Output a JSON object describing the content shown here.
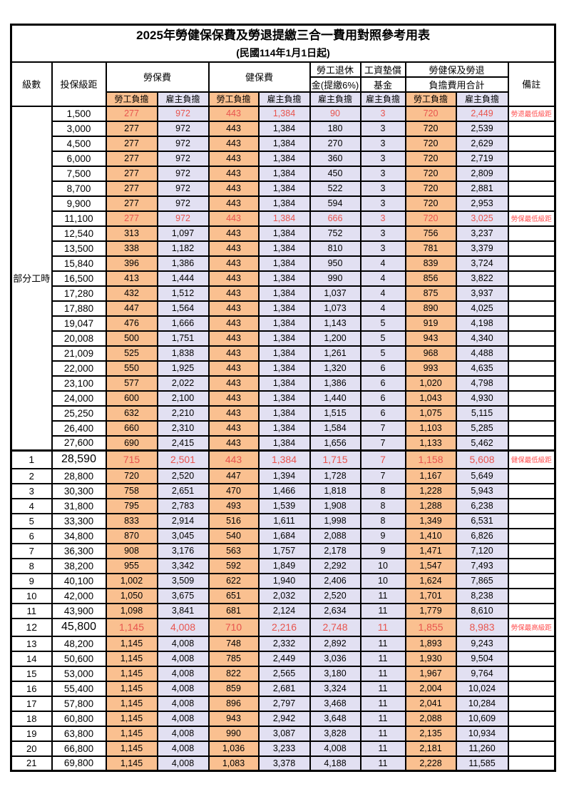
{
  "title": "2025年勞健保保費及勞退提繳三合一費用對照參考用表",
  "subtitle": "(民國114年1月1日起)",
  "colors": {
    "employee_bg": "#FAC090",
    "employer_bg": "#E2E0F2",
    "value_red": "#E8544E",
    "remark_red": "#FF4D4D",
    "border": "#000000"
  },
  "header": {
    "level": "級數",
    "bracket": "投保級距",
    "labor_insurance": "勞保費",
    "health_insurance": "健保費",
    "pension_line1": "勞工退休",
    "pension_line2": "金(提繳6%)",
    "wage_fund_line1": "工資墊償",
    "wage_fund_line2": "基金",
    "total_line1": "勞健保及勞退",
    "total_line2": "負擔費用合計",
    "remark": "備註",
    "employee": "勞工負擔",
    "employer": "雇主負擔"
  },
  "part_time_label": "部分工時",
  "part_time_rowspan": 23,
  "rows": [
    {
      "level": "",
      "bracket": "1,500",
      "li_emp": "277",
      "li_er": "972",
      "hi_emp": "443",
      "hi_er": "1,384",
      "pension": "90",
      "fund": "3",
      "tot_emp": "720",
      "tot_er": "2,449",
      "remark": "勞退最低級距",
      "red": true,
      "big": false,
      "sep": false
    },
    {
      "level": "",
      "bracket": "3,000",
      "li_emp": "277",
      "li_er": "972",
      "hi_emp": "443",
      "hi_er": "1,384",
      "pension": "180",
      "fund": "3",
      "tot_emp": "720",
      "tot_er": "2,539",
      "remark": "",
      "red": false,
      "big": false,
      "sep": false
    },
    {
      "level": "",
      "bracket": "4,500",
      "li_emp": "277",
      "li_er": "972",
      "hi_emp": "443",
      "hi_er": "1,384",
      "pension": "270",
      "fund": "3",
      "tot_emp": "720",
      "tot_er": "2,629",
      "remark": "",
      "red": false,
      "big": false,
      "sep": false
    },
    {
      "level": "",
      "bracket": "6,000",
      "li_emp": "277",
      "li_er": "972",
      "hi_emp": "443",
      "hi_er": "1,384",
      "pension": "360",
      "fund": "3",
      "tot_emp": "720",
      "tot_er": "2,719",
      "remark": "",
      "red": false,
      "big": false,
      "sep": false
    },
    {
      "level": "",
      "bracket": "7,500",
      "li_emp": "277",
      "li_er": "972",
      "hi_emp": "443",
      "hi_er": "1,384",
      "pension": "450",
      "fund": "3",
      "tot_emp": "720",
      "tot_er": "2,809",
      "remark": "",
      "red": false,
      "big": false,
      "sep": false
    },
    {
      "level": "",
      "bracket": "8,700",
      "li_emp": "277",
      "li_er": "972",
      "hi_emp": "443",
      "hi_er": "1,384",
      "pension": "522",
      "fund": "3",
      "tot_emp": "720",
      "tot_er": "2,881",
      "remark": "",
      "red": false,
      "big": false,
      "sep": false
    },
    {
      "level": "",
      "bracket": "9,900",
      "li_emp": "277",
      "li_er": "972",
      "hi_emp": "443",
      "hi_er": "1,384",
      "pension": "594",
      "fund": "3",
      "tot_emp": "720",
      "tot_er": "2,953",
      "remark": "",
      "red": false,
      "big": false,
      "sep": false
    },
    {
      "level": "",
      "bracket": "11,100",
      "li_emp": "277",
      "li_er": "972",
      "hi_emp": "443",
      "hi_er": "1,384",
      "pension": "666",
      "fund": "3",
      "tot_emp": "720",
      "tot_er": "3,025",
      "remark": "勞保最低級距",
      "red": true,
      "big": false,
      "sep": false
    },
    {
      "level": "",
      "bracket": "12,540",
      "li_emp": "313",
      "li_er": "1,097",
      "hi_emp": "443",
      "hi_er": "1,384",
      "pension": "752",
      "fund": "3",
      "tot_emp": "756",
      "tot_er": "3,237",
      "remark": "",
      "red": false,
      "big": false,
      "sep": false
    },
    {
      "level": "",
      "bracket": "13,500",
      "li_emp": "338",
      "li_er": "1,182",
      "hi_emp": "443",
      "hi_er": "1,384",
      "pension": "810",
      "fund": "3",
      "tot_emp": "781",
      "tot_er": "3,379",
      "remark": "",
      "red": false,
      "big": false,
      "sep": false
    },
    {
      "level": "",
      "bracket": "15,840",
      "li_emp": "396",
      "li_er": "1,386",
      "hi_emp": "443",
      "hi_er": "1,384",
      "pension": "950",
      "fund": "4",
      "tot_emp": "839",
      "tot_er": "3,724",
      "remark": "",
      "red": false,
      "big": false,
      "sep": false
    },
    {
      "level": "",
      "bracket": "16,500",
      "li_emp": "413",
      "li_er": "1,444",
      "hi_emp": "443",
      "hi_er": "1,384",
      "pension": "990",
      "fund": "4",
      "tot_emp": "856",
      "tot_er": "3,822",
      "remark": "",
      "red": false,
      "big": false,
      "sep": false
    },
    {
      "level": "",
      "bracket": "17,280",
      "li_emp": "432",
      "li_er": "1,512",
      "hi_emp": "443",
      "hi_er": "1,384",
      "pension": "1,037",
      "fund": "4",
      "tot_emp": "875",
      "tot_er": "3,937",
      "remark": "",
      "red": false,
      "big": false,
      "sep": false
    },
    {
      "level": "",
      "bracket": "17,880",
      "li_emp": "447",
      "li_er": "1,564",
      "hi_emp": "443",
      "hi_er": "1,384",
      "pension": "1,073",
      "fund": "4",
      "tot_emp": "890",
      "tot_er": "4,025",
      "remark": "",
      "red": false,
      "big": false,
      "sep": false
    },
    {
      "level": "",
      "bracket": "19,047",
      "li_emp": "476",
      "li_er": "1,666",
      "hi_emp": "443",
      "hi_er": "1,384",
      "pension": "1,143",
      "fund": "5",
      "tot_emp": "919",
      "tot_er": "4,198",
      "remark": "",
      "red": false,
      "big": false,
      "sep": false
    },
    {
      "level": "",
      "bracket": "20,008",
      "li_emp": "500",
      "li_er": "1,751",
      "hi_emp": "443",
      "hi_er": "1,384",
      "pension": "1,200",
      "fund": "5",
      "tot_emp": "943",
      "tot_er": "4,340",
      "remark": "",
      "red": false,
      "big": false,
      "sep": false
    },
    {
      "level": "",
      "bracket": "21,009",
      "li_emp": "525",
      "li_er": "1,838",
      "hi_emp": "443",
      "hi_er": "1,384",
      "pension": "1,261",
      "fund": "5",
      "tot_emp": "968",
      "tot_er": "4,488",
      "remark": "",
      "red": false,
      "big": false,
      "sep": false
    },
    {
      "level": "",
      "bracket": "22,000",
      "li_emp": "550",
      "li_er": "1,925",
      "hi_emp": "443",
      "hi_er": "1,384",
      "pension": "1,320",
      "fund": "6",
      "tot_emp": "993",
      "tot_er": "4,635",
      "remark": "",
      "red": false,
      "big": false,
      "sep": false
    },
    {
      "level": "",
      "bracket": "23,100",
      "li_emp": "577",
      "li_er": "2,022",
      "hi_emp": "443",
      "hi_er": "1,384",
      "pension": "1,386",
      "fund": "6",
      "tot_emp": "1,020",
      "tot_er": "4,798",
      "remark": "",
      "red": false,
      "big": false,
      "sep": false
    },
    {
      "level": "",
      "bracket": "24,000",
      "li_emp": "600",
      "li_er": "2,100",
      "hi_emp": "443",
      "hi_er": "1,384",
      "pension": "1,440",
      "fund": "6",
      "tot_emp": "1,043",
      "tot_er": "4,930",
      "remark": "",
      "red": false,
      "big": false,
      "sep": false
    },
    {
      "level": "",
      "bracket": "25,250",
      "li_emp": "632",
      "li_er": "2,210",
      "hi_emp": "443",
      "hi_er": "1,384",
      "pension": "1,515",
      "fund": "6",
      "tot_emp": "1,075",
      "tot_er": "5,115",
      "remark": "",
      "red": false,
      "big": false,
      "sep": false
    },
    {
      "level": "",
      "bracket": "26,400",
      "li_emp": "660",
      "li_er": "2,310",
      "hi_emp": "443",
      "hi_er": "1,384",
      "pension": "1,584",
      "fund": "7",
      "tot_emp": "1,103",
      "tot_er": "5,285",
      "remark": "",
      "red": false,
      "big": false,
      "sep": false
    },
    {
      "level": "",
      "bracket": "27,600",
      "li_emp": "690",
      "li_er": "2,415",
      "hi_emp": "443",
      "hi_er": "1,384",
      "pension": "1,656",
      "fund": "7",
      "tot_emp": "1,133",
      "tot_er": "5,462",
      "remark": "",
      "red": false,
      "big": false,
      "sep": false
    },
    {
      "level": "1",
      "bracket": "28,590",
      "li_emp": "715",
      "li_er": "2,501",
      "hi_emp": "443",
      "hi_er": "1,384",
      "pension": "1,715",
      "fund": "7",
      "tot_emp": "1,158",
      "tot_er": "5,608",
      "remark": "健保最低級距",
      "red": true,
      "big": true,
      "sep": true
    },
    {
      "level": "2",
      "bracket": "28,800",
      "li_emp": "720",
      "li_er": "2,520",
      "hi_emp": "447",
      "hi_er": "1,394",
      "pension": "1,728",
      "fund": "7",
      "tot_emp": "1,167",
      "tot_er": "5,649",
      "remark": "",
      "red": false,
      "big": false,
      "sep": false
    },
    {
      "level": "3",
      "bracket": "30,300",
      "li_emp": "758",
      "li_er": "2,651",
      "hi_emp": "470",
      "hi_er": "1,466",
      "pension": "1,818",
      "fund": "8",
      "tot_emp": "1,228",
      "tot_er": "5,943",
      "remark": "",
      "red": false,
      "big": false,
      "sep": false
    },
    {
      "level": "4",
      "bracket": "31,800",
      "li_emp": "795",
      "li_er": "2,783",
      "hi_emp": "493",
      "hi_er": "1,539",
      "pension": "1,908",
      "fund": "8",
      "tot_emp": "1,288",
      "tot_er": "6,238",
      "remark": "",
      "red": false,
      "big": false,
      "sep": false
    },
    {
      "level": "5",
      "bracket": "33,300",
      "li_emp": "833",
      "li_er": "2,914",
      "hi_emp": "516",
      "hi_er": "1,611",
      "pension": "1,998",
      "fund": "8",
      "tot_emp": "1,349",
      "tot_er": "6,531",
      "remark": "",
      "red": false,
      "big": false,
      "sep": false
    },
    {
      "level": "6",
      "bracket": "34,800",
      "li_emp": "870",
      "li_er": "3,045",
      "hi_emp": "540",
      "hi_er": "1,684",
      "pension": "2,088",
      "fund": "9",
      "tot_emp": "1,410",
      "tot_er": "6,826",
      "remark": "",
      "red": false,
      "big": false,
      "sep": false
    },
    {
      "level": "7",
      "bracket": "36,300",
      "li_emp": "908",
      "li_er": "3,176",
      "hi_emp": "563",
      "hi_er": "1,757",
      "pension": "2,178",
      "fund": "9",
      "tot_emp": "1,471",
      "tot_er": "7,120",
      "remark": "",
      "red": false,
      "big": false,
      "sep": false
    },
    {
      "level": "8",
      "bracket": "38,200",
      "li_emp": "955",
      "li_er": "3,342",
      "hi_emp": "592",
      "hi_er": "1,849",
      "pension": "2,292",
      "fund": "10",
      "tot_emp": "1,547",
      "tot_er": "7,493",
      "remark": "",
      "red": false,
      "big": false,
      "sep": false
    },
    {
      "level": "9",
      "bracket": "40,100",
      "li_emp": "1,002",
      "li_er": "3,509",
      "hi_emp": "622",
      "hi_er": "1,940",
      "pension": "2,406",
      "fund": "10",
      "tot_emp": "1,624",
      "tot_er": "7,865",
      "remark": "",
      "red": false,
      "big": false,
      "sep": false
    },
    {
      "level": "10",
      "bracket": "42,000",
      "li_emp": "1,050",
      "li_er": "3,675",
      "hi_emp": "651",
      "hi_er": "2,032",
      "pension": "2,520",
      "fund": "11",
      "tot_emp": "1,701",
      "tot_er": "8,238",
      "remark": "",
      "red": false,
      "big": false,
      "sep": false
    },
    {
      "level": "11",
      "bracket": "43,900",
      "li_emp": "1,098",
      "li_er": "3,841",
      "hi_emp": "681",
      "hi_er": "2,124",
      "pension": "2,634",
      "fund": "11",
      "tot_emp": "1,779",
      "tot_er": "8,610",
      "remark": "",
      "red": false,
      "big": false,
      "sep": false
    },
    {
      "level": "12",
      "bracket": "45,800",
      "li_emp": "1,145",
      "li_er": "4,008",
      "hi_emp": "710",
      "hi_er": "2,216",
      "pension": "2,748",
      "fund": "11",
      "tot_emp": "1,855",
      "tot_er": "8,983",
      "remark": "勞保最高級距",
      "red": true,
      "big": true,
      "sep": false
    },
    {
      "level": "13",
      "bracket": "48,200",
      "li_emp": "1,145",
      "li_er": "4,008",
      "hi_emp": "748",
      "hi_er": "2,332",
      "pension": "2,892",
      "fund": "11",
      "tot_emp": "1,893",
      "tot_er": "9,243",
      "remark": "",
      "red": false,
      "big": false,
      "sep": false
    },
    {
      "level": "14",
      "bracket": "50,600",
      "li_emp": "1,145",
      "li_er": "4,008",
      "hi_emp": "785",
      "hi_er": "2,449",
      "pension": "3,036",
      "fund": "11",
      "tot_emp": "1,930",
      "tot_er": "9,504",
      "remark": "",
      "red": false,
      "big": false,
      "sep": false
    },
    {
      "level": "15",
      "bracket": "53,000",
      "li_emp": "1,145",
      "li_er": "4,008",
      "hi_emp": "822",
      "hi_er": "2,565",
      "pension": "3,180",
      "fund": "11",
      "tot_emp": "1,967",
      "tot_er": "9,764",
      "remark": "",
      "red": false,
      "big": false,
      "sep": false
    },
    {
      "level": "16",
      "bracket": "55,400",
      "li_emp": "1,145",
      "li_er": "4,008",
      "hi_emp": "859",
      "hi_er": "2,681",
      "pension": "3,324",
      "fund": "11",
      "tot_emp": "2,004",
      "tot_er": "10,024",
      "remark": "",
      "red": false,
      "big": false,
      "sep": false
    },
    {
      "level": "17",
      "bracket": "57,800",
      "li_emp": "1,145",
      "li_er": "4,008",
      "hi_emp": "896",
      "hi_er": "2,797",
      "pension": "3,468",
      "fund": "11",
      "tot_emp": "2,041",
      "tot_er": "10,284",
      "remark": "",
      "red": false,
      "big": false,
      "sep": false
    },
    {
      "level": "18",
      "bracket": "60,800",
      "li_emp": "1,145",
      "li_er": "4,008",
      "hi_emp": "943",
      "hi_er": "2,942",
      "pension": "3,648",
      "fund": "11",
      "tot_emp": "2,088",
      "tot_er": "10,609",
      "remark": "",
      "red": false,
      "big": false,
      "sep": false
    },
    {
      "level": "19",
      "bracket": "63,800",
      "li_emp": "1,145",
      "li_er": "4,008",
      "hi_emp": "990",
      "hi_er": "3,087",
      "pension": "3,828",
      "fund": "11",
      "tot_emp": "2,135",
      "tot_er": "10,934",
      "remark": "",
      "red": false,
      "big": false,
      "sep": false
    },
    {
      "level": "20",
      "bracket": "66,800",
      "li_emp": "1,145",
      "li_er": "4,008",
      "hi_emp": "1,036",
      "hi_er": "3,233",
      "pension": "4,008",
      "fund": "11",
      "tot_emp": "2,181",
      "tot_er": "11,260",
      "remark": "",
      "red": false,
      "big": false,
      "sep": false
    },
    {
      "level": "21",
      "bracket": "69,800",
      "li_emp": "1,145",
      "li_er": "4,008",
      "hi_emp": "1,083",
      "hi_er": "3,378",
      "pension": "4,188",
      "fund": "11",
      "tot_emp": "2,228",
      "tot_er": "11,585",
      "remark": "",
      "red": false,
      "big": false,
      "sep": false
    }
  ]
}
